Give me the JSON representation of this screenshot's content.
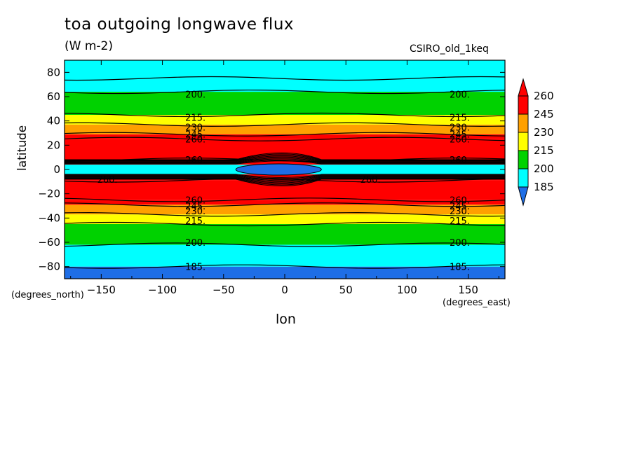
{
  "chart_data": {
    "type": "heatmap",
    "title": "toa outgoing longwave flux",
    "units": "(W m-2)",
    "model_label": "CSIRO_old_1keq",
    "xlabel": "lon",
    "ylabel": "latitude",
    "x_units_label": "(degrees_east)",
    "y_units_label": "(degrees_north)",
    "xlim": [
      -180,
      180
    ],
    "ylim": [
      -90,
      90
    ],
    "x_ticks": [
      -150,
      -100,
      -50,
      0,
      50,
      100,
      150
    ],
    "y_ticks": [
      -80,
      -60,
      -40,
      -20,
      0,
      20,
      40,
      60,
      80
    ],
    "colorbar": {
      "levels": [
        185,
        200,
        215,
        230,
        245,
        260
      ],
      "labels": [
        "260",
        "245",
        "230",
        "215",
        "200",
        "185"
      ],
      "colors": [
        "#1e6ee6",
        "#00ffff",
        "#00d200",
        "#ffff00",
        "#ffa000",
        "#ff0000",
        "#ff0000"
      ],
      "extend": "both"
    },
    "latitude_bands": [
      {
        "lat_min": -90,
        "lat_max": -80,
        "flux": 180
      },
      {
        "lat_min": -80,
        "lat_max": -62,
        "flux": 192
      },
      {
        "lat_min": -62,
        "lat_max": -45,
        "flux": 207
      },
      {
        "lat_min": -45,
        "lat_max": -37,
        "flux": 222
      },
      {
        "lat_min": -37,
        "lat_max": -29,
        "flux": 237
      },
      {
        "lat_min": -29,
        "lat_max": -25,
        "flux": 252
      },
      {
        "lat_min": -25,
        "lat_max": -9,
        "flux": 268
      },
      {
        "lat_min": -9,
        "lat_max": -4,
        "flux": 280
      },
      {
        "lat_min": -4,
        "lat_max": 0,
        "flux": 185
      },
      {
        "lat_min": 0,
        "lat_max": 4,
        "flux": 190
      },
      {
        "lat_min": 4,
        "lat_max": 8,
        "flux": 280
      },
      {
        "lat_min": 8,
        "lat_max": 25,
        "flux": 268
      },
      {
        "lat_min": 25,
        "lat_max": 29,
        "flux": 252
      },
      {
        "lat_min": 29,
        "lat_max": 37,
        "flux": 237
      },
      {
        "lat_min": 37,
        "lat_max": 45,
        "flux": 222
      },
      {
        "lat_min": 45,
        "lat_max": 64,
        "flux": 207
      },
      {
        "lat_min": 64,
        "lat_max": 75,
        "flux": 192
      },
      {
        "lat_min": 75,
        "lat_max": 90,
        "flux": 185
      }
    ],
    "contour_labels": [
      {
        "text": "200.",
        "lon": -73,
        "lat": 62
      },
      {
        "text": "200.",
        "lon": 143,
        "lat": 62
      },
      {
        "text": "215.",
        "lon": -73,
        "lat": 43
      },
      {
        "text": "215.",
        "lon": 143,
        "lat": 43
      },
      {
        "text": "230.",
        "lon": -73,
        "lat": 35
      },
      {
        "text": "230.",
        "lon": 143,
        "lat": 35
      },
      {
        "text": "245.",
        "lon": -73,
        "lat": 29
      },
      {
        "text": "245.",
        "lon": 143,
        "lat": 29
      },
      {
        "text": "260.",
        "lon": -73,
        "lat": 25
      },
      {
        "text": "260.",
        "lon": 143,
        "lat": 25
      },
      {
        "text": "260.",
        "lon": -73,
        "lat": 8
      },
      {
        "text": "260.",
        "lon": 143,
        "lat": 8
      },
      {
        "text": "260.",
        "lon": -145,
        "lat": -8
      },
      {
        "text": "260.",
        "lon": 70,
        "lat": -8
      },
      {
        "text": "260.",
        "lon": -73,
        "lat": -25
      },
      {
        "text": "260.",
        "lon": 143,
        "lat": -25
      },
      {
        "text": "245.",
        "lon": -73,
        "lat": -30
      },
      {
        "text": "245.",
        "lon": 143,
        "lat": -30
      },
      {
        "text": "230.",
        "lon": -73,
        "lat": -34
      },
      {
        "text": "230.",
        "lon": 143,
        "lat": -34
      },
      {
        "text": "215.",
        "lon": -73,
        "lat": -42
      },
      {
        "text": "215.",
        "lon": 143,
        "lat": -42
      },
      {
        "text": "200.",
        "lon": -73,
        "lat": -60
      },
      {
        "text": "200.",
        "lon": 143,
        "lat": -60
      },
      {
        "text": "185.",
        "lon": -73,
        "lat": -80
      },
      {
        "text": "185.",
        "lon": 143,
        "lat": -80
      }
    ]
  }
}
